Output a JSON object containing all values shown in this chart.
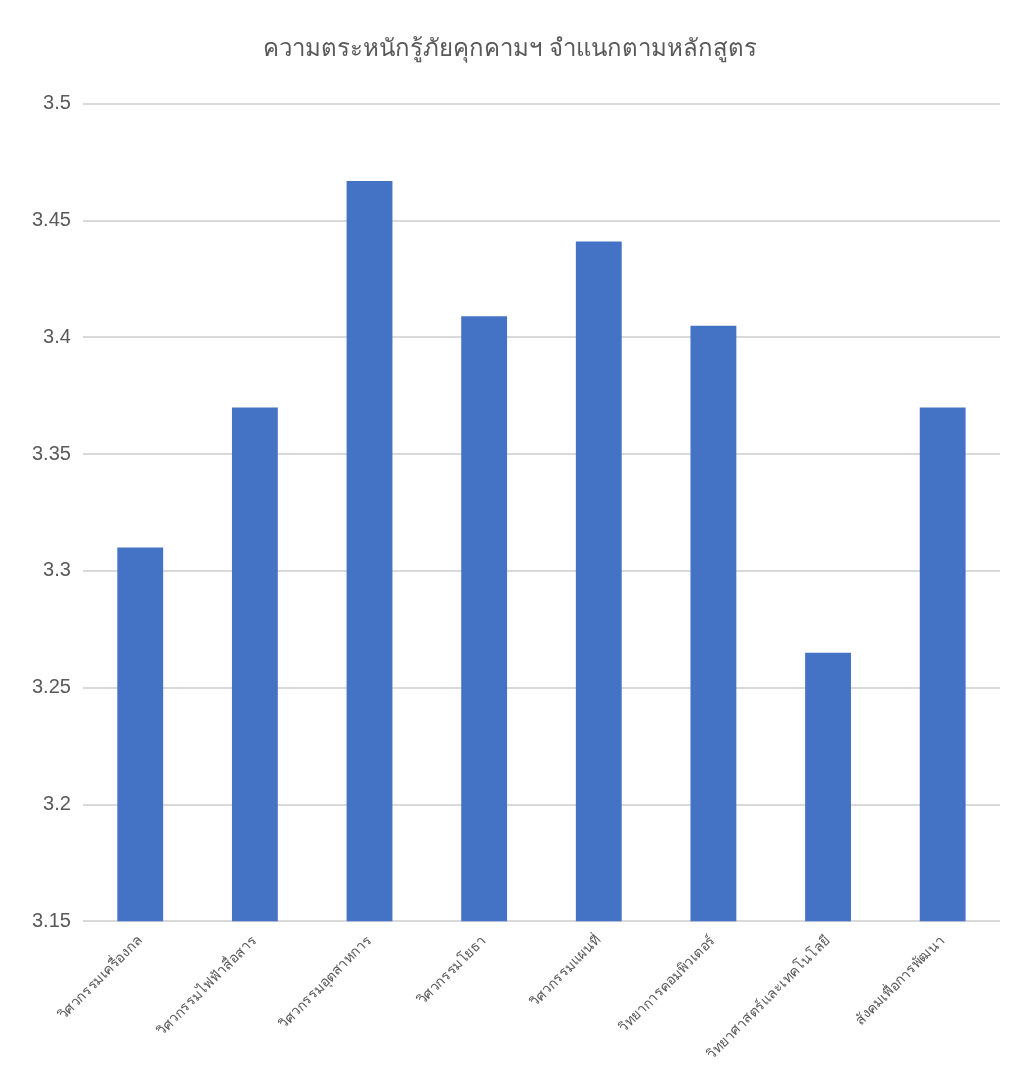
{
  "chart_data": {
    "type": "bar",
    "title": "ความตระหนักรู้ภัยคุกคามฯ จำแนกตามหลักสูตร",
    "categories": [
      "วิศวกรรมเครื่องกล",
      "วิศวกรรมไฟฟ้าสื่อสาร",
      "วิศวกรรมอุตสาหการ",
      "วิศวกรรมโยธา",
      "วิศวกรรมแผนที่",
      "วิทยาการคอมพิวเตอร์",
      "วิทยาศาสตร์และเทคโนโลยี",
      "สังคมเพื่อการพัฒนา"
    ],
    "values": [
      3.31,
      3.37,
      3.467,
      3.409,
      3.441,
      3.405,
      3.265,
      3.37
    ],
    "color": "#4472c4",
    "ylim": [
      3.15,
      3.5
    ],
    "yticks": [
      3.15,
      3.2,
      3.25,
      3.3,
      3.35,
      3.4,
      3.45,
      3.5
    ],
    "grid": "y",
    "legend": false
  }
}
